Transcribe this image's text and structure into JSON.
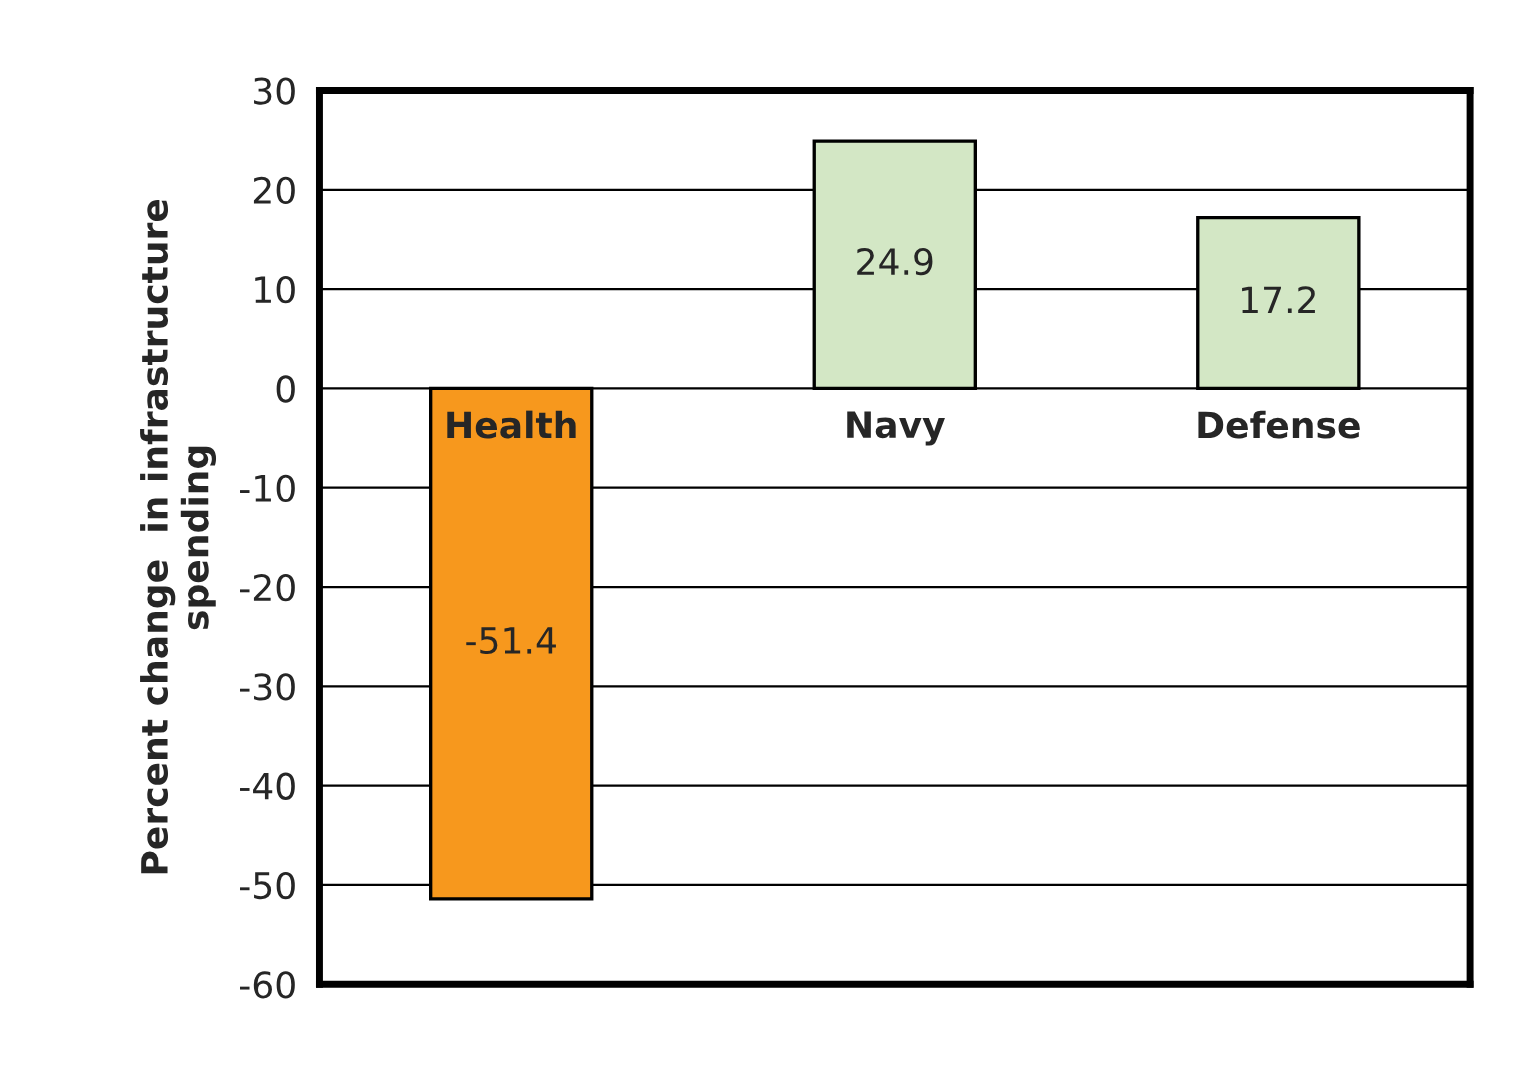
{
  "chart_data": {
    "type": "bar",
    "ylabel": "Percent change  in infrastructure\nspending",
    "categories": [
      "Health",
      "Navy",
      "Defense"
    ],
    "values": [
      -51.4,
      24.9,
      17.2
    ],
    "colors": [
      "#f7981d",
      "#d3e7c5",
      "#d3e7c5"
    ],
    "ylim": [
      -60,
      30
    ],
    "yticks": [
      -60,
      -50,
      -40,
      -30,
      -20,
      -10,
      0,
      10,
      20,
      30
    ],
    "grid": "y",
    "data_labels": true
  }
}
